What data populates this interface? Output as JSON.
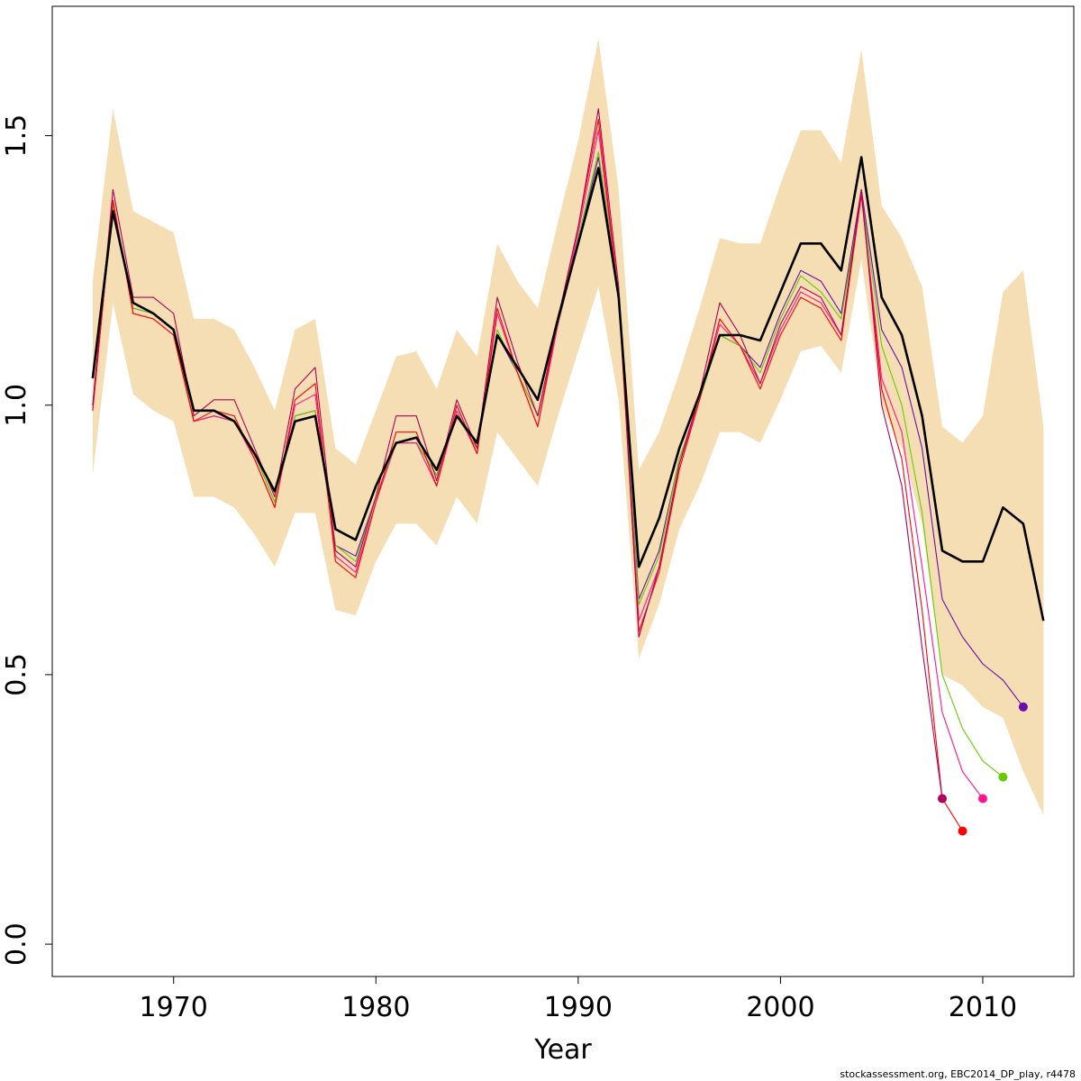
{
  "chart_data": {
    "type": "line",
    "title": "",
    "xlabel": "Year",
    "ylabel": "",
    "xlim": [
      1964,
      2014.5
    ],
    "ylim": [
      -0.06,
      1.74
    ],
    "x_ticks": [
      1970,
      1980,
      1990,
      2000,
      2010
    ],
    "y_ticks": [
      0.0,
      0.5,
      1.0,
      1.5
    ],
    "y_tick_labels": [
      "0.0",
      "0.5",
      "1.0",
      "1.5"
    ],
    "grid": false,
    "legend": "none",
    "footer": "stockassessment.org, EBC2014_DP_play, r4478",
    "band_color": "#F5DEB3",
    "confidence_band": {
      "x": [
        1966,
        1967,
        1968,
        1969,
        1970,
        1971,
        1972,
        1973,
        1974,
        1975,
        1976,
        1977,
        1978,
        1979,
        1980,
        1981,
        1982,
        1983,
        1984,
        1985,
        1986,
        1987,
        1988,
        1989,
        1990,
        1991,
        1992,
        1993,
        1994,
        1995,
        1996,
        1997,
        1998,
        1999,
        2000,
        2001,
        2002,
        2003,
        2004,
        2005,
        2006,
        2007,
        2008,
        2009,
        2010,
        2011,
        2012,
        2013
      ],
      "upper": [
        1.23,
        1.55,
        1.36,
        1.34,
        1.32,
        1.16,
        1.16,
        1.14,
        1.07,
        0.99,
        1.14,
        1.16,
        0.92,
        0.89,
        0.99,
        1.09,
        1.1,
        1.03,
        1.14,
        1.09,
        1.3,
        1.23,
        1.18,
        1.34,
        1.49,
        1.68,
        1.4,
        0.88,
        0.95,
        1.06,
        1.18,
        1.31,
        1.3,
        1.3,
        1.41,
        1.51,
        1.51,
        1.45,
        1.66,
        1.37,
        1.31,
        1.22,
        0.96,
        0.93,
        0.98,
        1.21,
        1.25,
        0.96
      ],
      "lower": [
        0.87,
        1.19,
        1.02,
        0.99,
        0.97,
        0.83,
        0.83,
        0.81,
        0.76,
        0.7,
        0.8,
        0.8,
        0.62,
        0.61,
        0.71,
        0.78,
        0.78,
        0.74,
        0.83,
        0.78,
        0.95,
        0.9,
        0.85,
        0.98,
        1.1,
        1.22,
        1.01,
        0.53,
        0.63,
        0.77,
        0.85,
        0.95,
        0.95,
        0.93,
        1.01,
        1.1,
        1.11,
        1.06,
        1.27,
        1.0,
        0.92,
        0.78,
        0.5,
        0.48,
        0.44,
        0.42,
        0.32,
        0.24
      ]
    },
    "series": [
      {
        "color": "#000000",
        "width": 2.6,
        "x": [
          1966,
          1967,
          1968,
          1969,
          1970,
          1971,
          1972,
          1973,
          1974,
          1975,
          1976,
          1977,
          1978,
          1979,
          1980,
          1981,
          1982,
          1983,
          1984,
          1985,
          1986,
          1987,
          1988,
          1989,
          1990,
          1991,
          1992,
          1993,
          1994,
          1995,
          1996,
          1997,
          1998,
          1999,
          2000,
          2001,
          2002,
          2003,
          2004,
          2005,
          2006,
          2007,
          2008,
          2009,
          2010,
          2011,
          2012,
          2013
        ],
        "y": [
          1.05,
          1.36,
          1.19,
          1.17,
          1.14,
          0.99,
          0.99,
          0.97,
          0.91,
          0.84,
          0.97,
          0.98,
          0.77,
          0.75,
          0.85,
          0.93,
          0.94,
          0.88,
          0.98,
          0.93,
          1.13,
          1.07,
          1.01,
          1.16,
          1.3,
          1.44,
          1.2,
          0.7,
          0.79,
          0.92,
          1.02,
          1.13,
          1.13,
          1.12,
          1.21,
          1.3,
          1.3,
          1.25,
          1.46,
          1.2,
          1.13,
          0.98,
          0.73,
          0.71,
          0.71,
          0.81,
          0.78,
          0.6
        ]
      },
      {
        "color": "#6A0DAD",
        "width": 1.1,
        "x": [
          1966,
          1967,
          1968,
          1969,
          1970,
          1971,
          1972,
          1973,
          1974,
          1975,
          1976,
          1977,
          1978,
          1979,
          1980,
          1981,
          1982,
          1983,
          1984,
          1985,
          1986,
          1987,
          1988,
          1989,
          1990,
          1991,
          1992,
          1993,
          1994,
          1995,
          1996,
          1997,
          1998,
          1999,
          2000,
          2001,
          2002,
          2003,
          2004,
          2005,
          2006,
          2007,
          2008,
          2009,
          2010,
          2011,
          2012
        ],
        "y": [
          1.0,
          1.37,
          1.18,
          1.17,
          1.14,
          0.97,
          0.98,
          0.97,
          0.91,
          0.82,
          0.98,
          0.99,
          0.74,
          0.72,
          0.83,
          0.93,
          0.93,
          0.87,
          0.98,
          0.92,
          1.13,
          1.06,
          0.98,
          1.15,
          1.3,
          1.46,
          1.21,
          0.64,
          0.73,
          0.9,
          1.01,
          1.13,
          1.11,
          1.07,
          1.17,
          1.25,
          1.23,
          1.17,
          1.4,
          1.14,
          1.07,
          0.92,
          0.64,
          0.57,
          0.52,
          0.49,
          0.44
        ],
        "end_marker": true
      },
      {
        "color": "#66CC00",
        "width": 1.1,
        "x": [
          1966,
          1967,
          1968,
          1969,
          1970,
          1971,
          1972,
          1973,
          1974,
          1975,
          1976,
          1977,
          1978,
          1979,
          1980,
          1981,
          1982,
          1983,
          1984,
          1985,
          1986,
          1987,
          1988,
          1989,
          1990,
          1991,
          1992,
          1993,
          1994,
          1995,
          1996,
          1997,
          1998,
          1999,
          2000,
          2001,
          2002,
          2003,
          2004,
          2005,
          2006,
          2007,
          2008,
          2009,
          2010,
          2011
        ],
        "y": [
          1.0,
          1.37,
          1.18,
          1.17,
          1.14,
          0.97,
          0.98,
          0.97,
          0.91,
          0.82,
          0.98,
          0.99,
          0.74,
          0.71,
          0.83,
          0.93,
          0.93,
          0.87,
          0.98,
          0.92,
          1.14,
          1.06,
          0.98,
          1.15,
          1.31,
          1.47,
          1.21,
          0.63,
          0.72,
          0.9,
          1.01,
          1.13,
          1.11,
          1.06,
          1.16,
          1.24,
          1.21,
          1.16,
          1.39,
          1.11,
          1.0,
          0.8,
          0.5,
          0.4,
          0.34,
          0.31
        ],
        "end_marker": true
      },
      {
        "color": "#FF1493",
        "width": 1.1,
        "x": [
          1966,
          1967,
          1968,
          1969,
          1970,
          1971,
          1972,
          1973,
          1974,
          1975,
          1976,
          1977,
          1978,
          1979,
          1980,
          1981,
          1982,
          1983,
          1984,
          1985,
          1986,
          1987,
          1988,
          1989,
          1990,
          1991,
          1992,
          1993,
          1994,
          1995,
          1996,
          1997,
          1998,
          1999,
          2000,
          2001,
          2002,
          2003,
          2004,
          2005,
          2006,
          2007,
          2008,
          2009,
          2010
        ],
        "y": [
          0.99,
          1.38,
          1.17,
          1.16,
          1.13,
          0.97,
          0.98,
          0.97,
          0.9,
          0.81,
          1.0,
          1.02,
          0.72,
          0.69,
          0.82,
          0.93,
          0.93,
          0.85,
          0.99,
          0.91,
          1.17,
          1.06,
          0.96,
          1.15,
          1.32,
          1.51,
          1.2,
          0.6,
          0.7,
          0.89,
          1.01,
          1.15,
          1.11,
          1.04,
          1.14,
          1.21,
          1.19,
          1.13,
          1.39,
          1.05,
          0.95,
          0.7,
          0.43,
          0.32,
          0.27
        ],
        "end_marker": true
      },
      {
        "color": "#FF0000",
        "width": 1.1,
        "x": [
          1966,
          1967,
          1968,
          1969,
          1970,
          1971,
          1972,
          1973,
          1974,
          1975,
          1976,
          1977,
          1978,
          1979,
          1980,
          1981,
          1982,
          1983,
          1984,
          1985,
          1986,
          1987,
          1988,
          1989,
          1990,
          1991,
          1992,
          1993,
          1994,
          1995,
          1996,
          1997,
          1998,
          1999,
          2000,
          2001,
          2002,
          2003,
          2004,
          2005,
          2006,
          2007,
          2008,
          2009
        ],
        "y": [
          0.99,
          1.38,
          1.17,
          1.16,
          1.13,
          0.97,
          0.99,
          0.98,
          0.9,
          0.81,
          1.01,
          1.04,
          0.71,
          0.68,
          0.82,
          0.95,
          0.95,
          0.85,
          1.0,
          0.91,
          1.18,
          1.06,
          0.96,
          1.16,
          1.33,
          1.53,
          1.2,
          0.58,
          0.69,
          0.88,
          1.01,
          1.16,
          1.11,
          1.03,
          1.13,
          1.2,
          1.18,
          1.12,
          1.39,
          1.03,
          0.9,
          0.62,
          0.27,
          0.21
        ],
        "end_marker": true
      },
      {
        "color": "#B0005A",
        "width": 1.1,
        "x": [
          1966,
          1967,
          1968,
          1969,
          1970,
          1971,
          1972,
          1973,
          1974,
          1975,
          1976,
          1977,
          1978,
          1979,
          1980,
          1981,
          1982,
          1983,
          1984,
          1985,
          1986,
          1987,
          1988,
          1989,
          1990,
          1991,
          1992,
          1993,
          1994,
          1995,
          1996,
          1997,
          1998,
          1999,
          2000,
          2001,
          2002,
          2003,
          2004,
          2005,
          2006,
          2007,
          2008
        ],
        "y": [
          1.0,
          1.4,
          1.2,
          1.2,
          1.17,
          0.98,
          1.01,
          1.01,
          0.92,
          0.83,
          1.03,
          1.07,
          0.73,
          0.7,
          0.83,
          0.98,
          0.98,
          0.86,
          1.01,
          0.92,
          1.2,
          1.08,
          0.98,
          1.16,
          1.33,
          1.55,
          1.22,
          0.57,
          0.7,
          0.89,
          1.02,
          1.19,
          1.13,
          1.04,
          1.15,
          1.22,
          1.2,
          1.13,
          1.4,
          1.0,
          0.85,
          0.55,
          0.27
        ],
        "end_marker": true
      }
    ]
  }
}
